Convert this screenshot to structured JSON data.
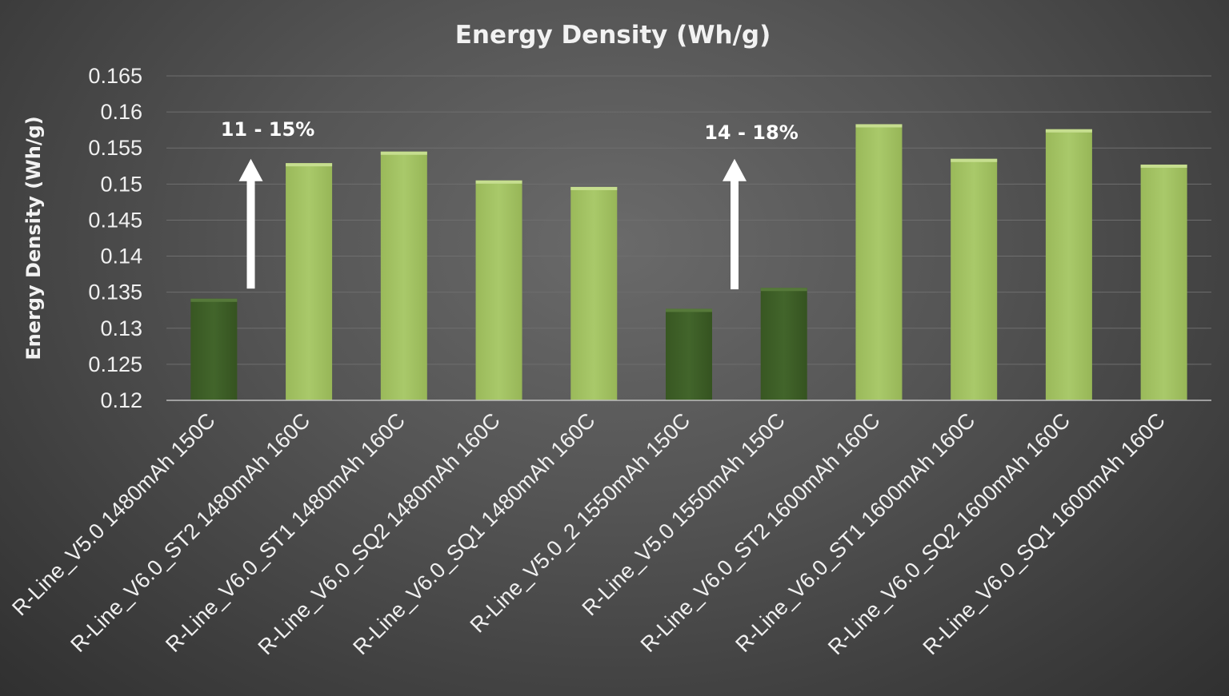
{
  "chart_data": {
    "type": "bar",
    "title": "Energy Density (Wh/g)",
    "xlabel": "",
    "ylabel": "Energy Density (Wh/g)",
    "ylim": [
      0.12,
      0.165
    ],
    "yticks": [
      0.12,
      0.125,
      0.13,
      0.135,
      0.14,
      0.145,
      0.15,
      0.155,
      0.16,
      0.165
    ],
    "ytick_labels": [
      "0.12",
      "0.125",
      "0.13",
      "0.135",
      "0.14",
      "0.145",
      "0.15",
      "0.155",
      "0.16",
      "0.165"
    ],
    "grid": true,
    "categories": [
      "R-Line_V5.0 1480mAh 150C",
      "R-Line_V6.0_ST2 1480mAh 160C",
      "R-Line_V6.0_ST1 1480mAh 160C",
      "R-Line_V6.0_SQ2 1480mAh 160C",
      "R-Line_V6.0_SQ1 1480mAh 160C",
      "R-Line_V5.0_2 1550mAh 150C",
      "R-Line_V5.0 1550mAh 150C",
      "R-Line_V6.0_ST2 1600mAh 160C",
      "R-Line_V6.0_ST1 1600mAh 160C",
      "R-Line_V6.0_SQ2 1600mAh 160C",
      "R-Line_V6.0_SQ1 1600mAh 160C"
    ],
    "values": [
      0.1341,
      0.1529,
      0.1545,
      0.1505,
      0.1496,
      0.1327,
      0.1356,
      0.1583,
      0.1535,
      0.1576,
      0.1527
    ],
    "bar_colors": [
      "#3d5e27",
      "#a3c463",
      "#a3c463",
      "#a3c463",
      "#a3c463",
      "#3d5e27",
      "#3d5e27",
      "#a3c463",
      "#a3c463",
      "#a3c463",
      "#a3c463"
    ],
    "annotations": [
      {
        "text": "11 - 15%",
        "arrow_from": 0.1355,
        "arrow_to": 0.1535
      },
      {
        "text": "14 - 18%",
        "arrow_from": 0.1354,
        "arrow_to": 0.1535
      }
    ]
  },
  "colors": {
    "dark_bar": "#3d5e27",
    "light_bar": "#a3c463",
    "text": "#f0f0f0"
  }
}
